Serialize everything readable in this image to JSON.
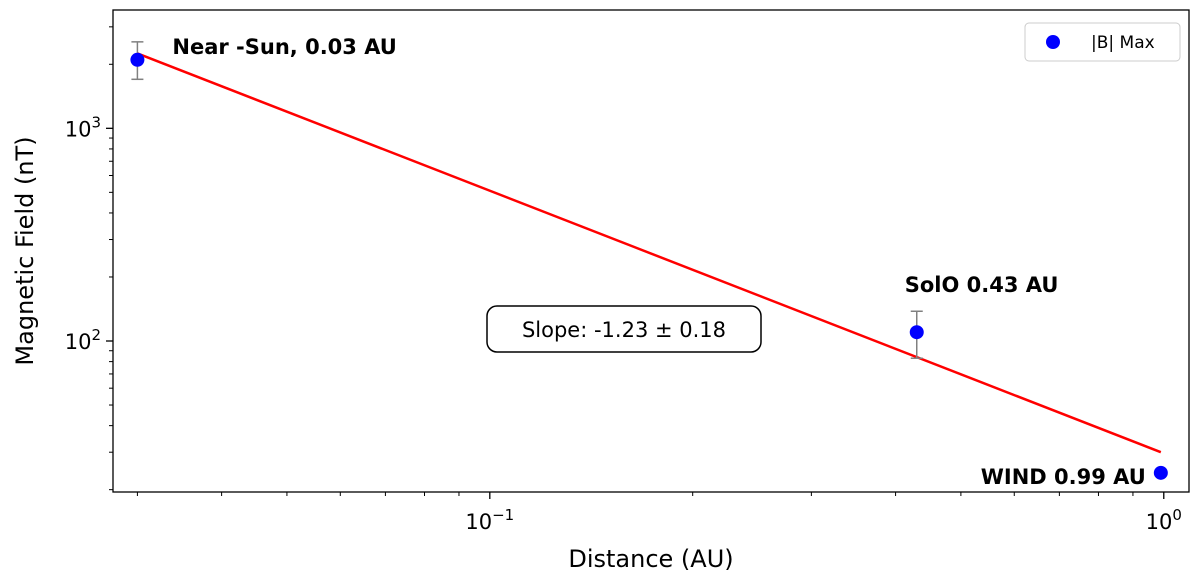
{
  "chart_data": {
    "type": "scatter",
    "xlabel": "Distance (AU)",
    "ylabel": "Magnetic Field (nT)",
    "xscale": "log",
    "yscale": "log",
    "xlim": [
      0.0276,
      1.09
    ],
    "ylim": [
      19.5,
      3600
    ],
    "x_ticks": [
      {
        "value": 0.1,
        "base": "10",
        "exp": "−1"
      },
      {
        "value": 1.0,
        "base": "10",
        "exp": "0"
      }
    ],
    "y_ticks": [
      {
        "value": 100,
        "base": "10",
        "exp": "2"
      },
      {
        "value": 1000,
        "base": "10",
        "exp": "3"
      }
    ],
    "series": [
      {
        "name": "|B| Max",
        "color": "#0000ff",
        "points": [
          {
            "x": 0.03,
            "y": 2100,
            "err_low": 1700,
            "err_high": 2550
          },
          {
            "x": 0.43,
            "y": 110,
            "err_low": 83,
            "err_high": 138
          },
          {
            "x": 0.99,
            "y": 24
          }
        ]
      }
    ],
    "fit": {
      "color": "#ff0000",
      "x": [
        0.03,
        0.99
      ],
      "y": [
        2250,
        30
      ]
    },
    "annotations": [
      {
        "text": "Near -Sun, 0.03 AU",
        "x": 0.03,
        "y": 2100,
        "anchor": "right-of-point"
      },
      {
        "text": "SolO 0.43 AU",
        "x": 0.43,
        "y": 110,
        "anchor": "above-point"
      },
      {
        "text": "WIND 0.99 AU",
        "x": 0.99,
        "y": 24,
        "anchor": "left-of-point"
      }
    ],
    "textbox": "Slope: -1.23 ± 0.18",
    "legend": {
      "position": "top-right",
      "label": "|B| Max"
    },
    "grid": false,
    "errorbar_color": "#808080"
  }
}
